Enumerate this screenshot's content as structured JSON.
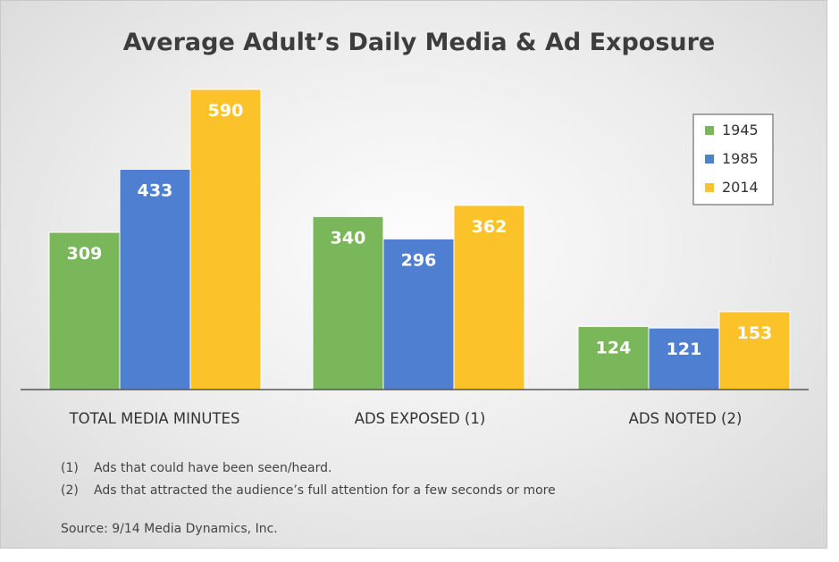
{
  "chart_data": {
    "type": "bar",
    "title": "Average Adult’s Daily Media & Ad Exposure",
    "categories": [
      "TOTAL MEDIA MINUTES",
      "ADS EXPOSED (1)",
      "ADS NOTED (2)"
    ],
    "series": [
      {
        "name": "1945",
        "color": "#7ab65a",
        "values": [
          309,
          340,
          124
        ],
        "labels": [
          "309",
          "340",
          "124"
        ]
      },
      {
        "name": "1985",
        "color": "#4f7fd1",
        "values": [
          433,
          296,
          121
        ],
        "labels": [
          "433",
          "296",
          "121"
        ]
      },
      {
        "name": "2014",
        "color": "#fcc22a",
        "values": [
          590,
          362,
          153
        ],
        "labels": [
          "590",
          "362",
          "153"
        ]
      }
    ],
    "legend_position": "top-right",
    "grid": false,
    "ylim": [
      0,
      590
    ]
  },
  "notes": [
    {
      "marker": "(1)",
      "text": "Ads that could have been seen/heard."
    },
    {
      "marker": "(2)",
      "text": "Ads that attracted the audience’s full attention for a few seconds or more"
    }
  ],
  "source": "Source:  9/14 Media Dynamics, Inc."
}
